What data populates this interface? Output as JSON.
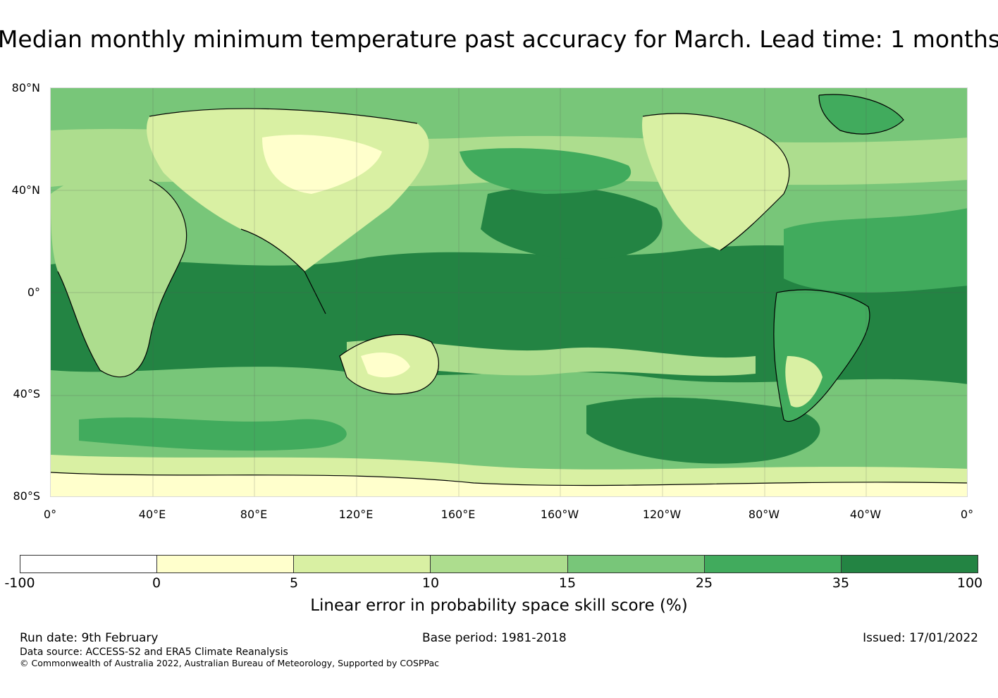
{
  "title": "Median monthly minimum temperature past accuracy for March. Lead time: 1 months",
  "map": {
    "lat_labels": [
      "80°N",
      "40°N",
      "0°",
      "40°S",
      "80°S"
    ],
    "lon_labels": [
      "0°",
      "40°E",
      "80°E",
      "120°E",
      "160°E",
      "160°W",
      "120°W",
      "80°W",
      "40°W",
      "0°"
    ]
  },
  "colorbar": {
    "ticks": [
      "-100",
      "0",
      "5",
      "10",
      "15",
      "25",
      "35",
      "100"
    ],
    "colors": [
      "#ffffff",
      "#ffffcc",
      "#d9f0a3",
      "#addd8e",
      "#78c679",
      "#41ab5d",
      "#238443"
    ],
    "label": "Linear error in probability space skill score (%)"
  },
  "footer": {
    "run_date": "Run date: 9th February",
    "base_period": "Base period: 1981-2018",
    "issued": "Issued: 17/01/2022",
    "data_source": "Data source: ACCESS-S2 and ERA5 Climate Reanalysis",
    "copyright": "© Commonwealth of Australia 2022, Australian Bureau of Meteorology, Supported by COSPPac"
  }
}
